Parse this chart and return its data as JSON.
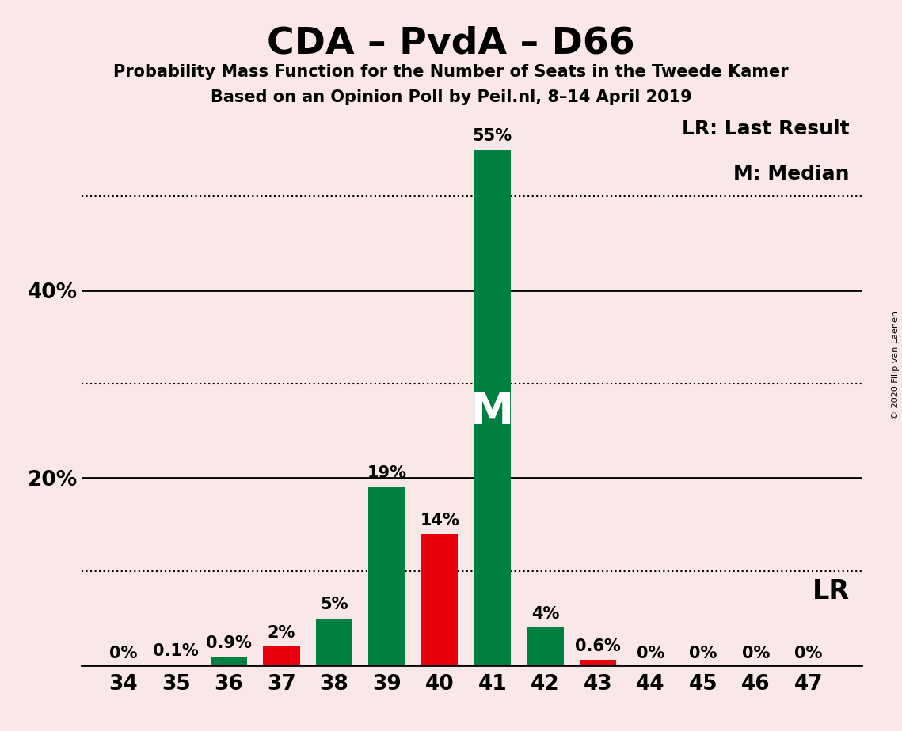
{
  "title": "CDA – PvdA – D66",
  "subtitle1": "Probability Mass Function for the Number of Seats in the Tweede Kamer",
  "subtitle2": "Based on an Opinion Poll by Peil.nl, 8–14 April 2019",
  "copyright": "© 2020 Filip van Laenen",
  "background_color": "#FAE8E8",
  "seats": [
    34,
    35,
    36,
    37,
    38,
    39,
    40,
    41,
    42,
    43,
    44,
    45,
    46,
    47
  ],
  "pmf_values": [
    0.0,
    0.0,
    0.9,
    0.0,
    5.0,
    19.0,
    0.0,
    55.0,
    4.0,
    0.0,
    0.0,
    0.0,
    0.0,
    0.0
  ],
  "lr_values": [
    0.0,
    0.1,
    0.0,
    2.0,
    0.0,
    0.0,
    14.0,
    0.0,
    0.0,
    0.6,
    0.0,
    0.0,
    0.0,
    0.0
  ],
  "pmf_color": "#008040",
  "lr_color": "#E8000D",
  "median_seat": 41,
  "median_label": "M",
  "bar_width": 0.7,
  "ylim": [
    0,
    60
  ],
  "dotted_lines": [
    10,
    30,
    50
  ],
  "solid_lines": [
    20,
    40
  ],
  "title_fontsize": 34,
  "subtitle_fontsize": 15,
  "tick_fontsize": 19,
  "bar_label_fontsize": 15,
  "legend_fontsize": 18,
  "lr_label_fontsize": 24,
  "m_label_fontsize": 40,
  "annotations": {
    "34": "0%",
    "35": "0.1%",
    "36": "0.9%",
    "37": "2%",
    "38": "5%",
    "39": "19%",
    "40": "14%",
    "41": "55%",
    "42": "4%",
    "43": "0.6%",
    "44": "0%",
    "45": "0%",
    "46": "0%",
    "47": "0%"
  }
}
